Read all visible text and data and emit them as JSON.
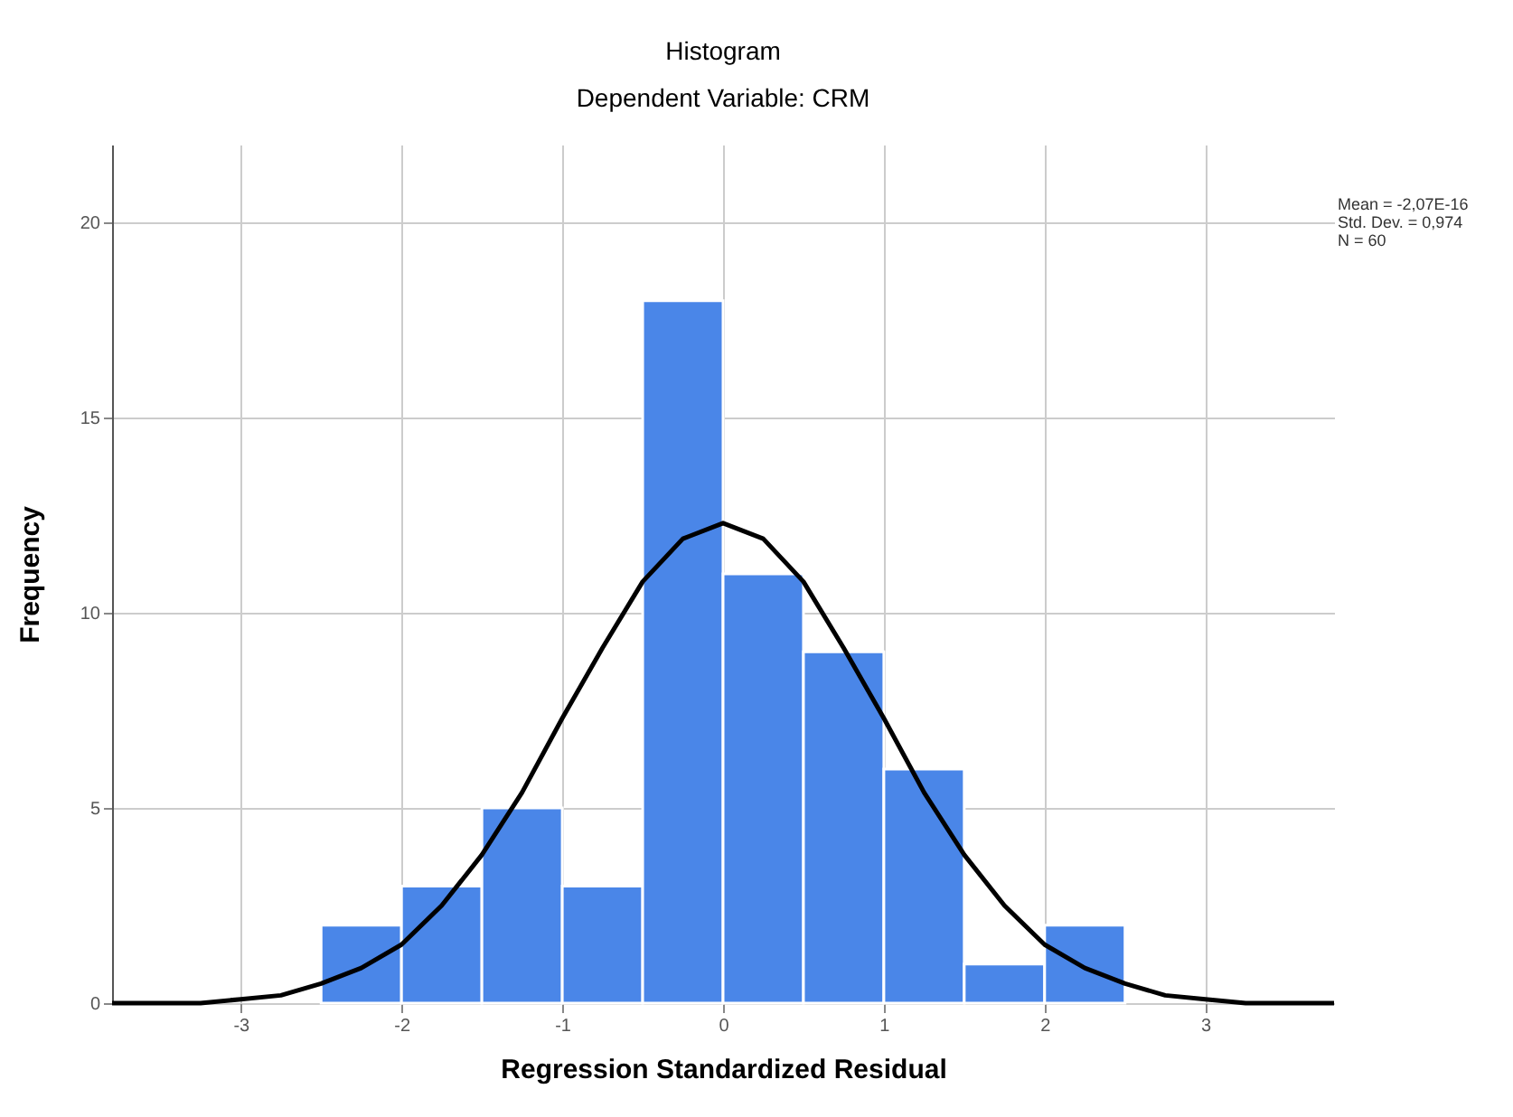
{
  "chart_data": {
    "type": "histogram",
    "title": "Histogram",
    "subtitle": "Dependent Variable: CRM",
    "xlabel": "Regression Standardized Residual",
    "ylabel": "Frequency",
    "bins": [
      -2.5,
      -2,
      -1.5,
      -1,
      -0.5,
      0,
      0.5,
      1,
      1.5,
      2,
      2.5
    ],
    "series": [
      {
        "color": "#4a86e8",
        "values": [
          2,
          3,
          5,
          3,
          18,
          11,
          9,
          6,
          1,
          2
        ]
      },
      {
        "type": "line",
        "color": "#000000",
        "x": [
          -3.8,
          -3.5,
          -3.25,
          -3,
          -2.75,
          -2.5,
          -2.25,
          -2,
          -1.75,
          -1.5,
          -1.25,
          -1,
          -0.75,
          -0.5,
          -0.25,
          0,
          0.25,
          0.5,
          0.75,
          1,
          1.25,
          1.5,
          1.75,
          2,
          2.25,
          2.5,
          2.75,
          3,
          3.25,
          3.5,
          3.8
        ],
        "values": [
          0,
          0,
          0,
          0.1,
          0.2,
          0.5,
          0.9,
          1.5,
          2.5,
          3.8,
          5.4,
          7.3,
          9.1,
          10.8,
          11.9,
          12.3,
          11.9,
          10.8,
          9.1,
          7.3,
          5.4,
          3.8,
          2.5,
          1.5,
          0.9,
          0.5,
          0.2,
          0.1,
          0,
          0,
          0
        ]
      }
    ],
    "xlim": [
      -3.8,
      3.8
    ],
    "xticks": [
      -3,
      -2,
      -1,
      0,
      1,
      2,
      3
    ],
    "ylim": [
      0,
      22
    ],
    "yticks": [
      0,
      5,
      10,
      15,
      20
    ],
    "grid": true,
    "marker": "none",
    "line_style": "solid",
    "annotations": [
      "Mean = -2,07E-16",
      "Std. Dev. = 0,974",
      "N = 60"
    ]
  }
}
